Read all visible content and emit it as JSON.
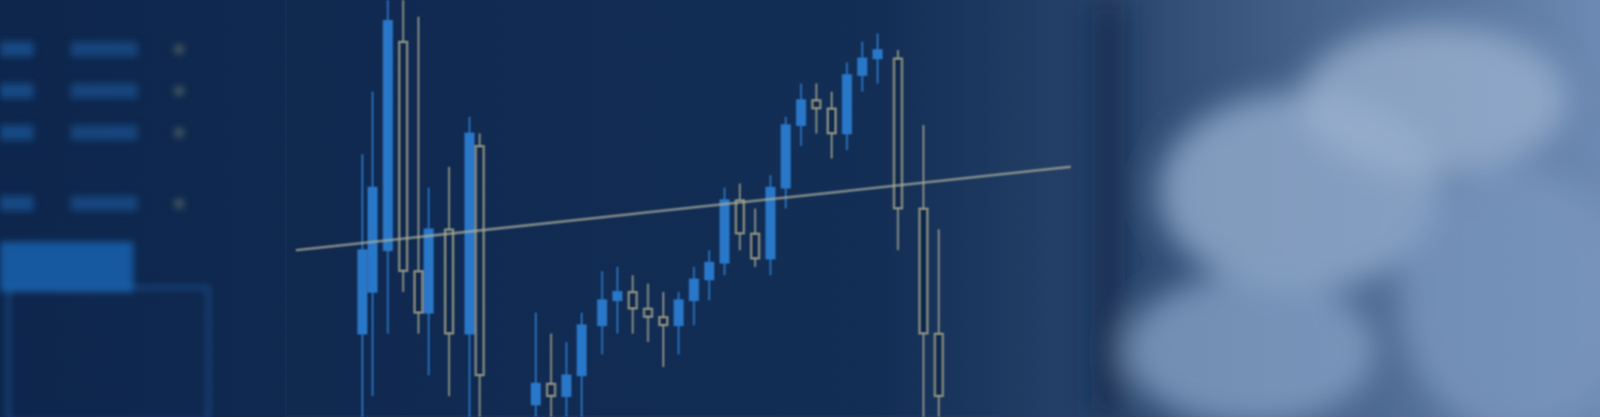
{
  "chart_data": {
    "type": "candlestick",
    "x": [
      0,
      2,
      5,
      8,
      11,
      13,
      17,
      21,
      23,
      34,
      37,
      40,
      43,
      47,
      50,
      53,
      56,
      59,
      62,
      65,
      68,
      71,
      74,
      77,
      80,
      83,
      86,
      89,
      92,
      95,
      98,
      101,
      105,
      110,
      113
    ],
    "open": [
      20,
      30,
      40,
      90,
      35,
      25,
      45,
      20,
      65,
      3,
      8,
      5,
      10,
      22,
      28,
      30,
      26,
      24,
      22,
      28,
      33,
      37,
      52,
      44,
      38,
      55,
      70,
      76,
      74,
      68,
      82,
      86,
      86,
      50,
      20
    ],
    "high": [
      63,
      78,
      100,
      100,
      96,
      55,
      60,
      72,
      68,
      25,
      20,
      18,
      25,
      35,
      36,
      34,
      32,
      30,
      30,
      36,
      40,
      55,
      56,
      50,
      58,
      72,
      80,
      80,
      78,
      85,
      90,
      92,
      88,
      70,
      45
    ],
    "low": [
      0,
      5,
      20,
      30,
      20,
      10,
      5,
      0,
      0,
      0,
      0,
      0,
      0,
      15,
      20,
      20,
      18,
      12,
      15,
      22,
      28,
      34,
      40,
      36,
      34,
      50,
      65,
      68,
      62,
      64,
      78,
      80,
      40,
      0,
      0
    ],
    "close": [
      40,
      55,
      95,
      35,
      25,
      45,
      20,
      68,
      10,
      8,
      5,
      10,
      22,
      28,
      30,
      26,
      24,
      22,
      28,
      33,
      37,
      52,
      44,
      38,
      55,
      70,
      76,
      74,
      68,
      82,
      86,
      88,
      50,
      20,
      5
    ],
    "colors": [
      "#2f86dc",
      "#2f86dc",
      "#2f86dc",
      "#b4b28f",
      "#b4b28f",
      "#2f86dc",
      "#b4b28f",
      "#2f86dc",
      "#b4b28f",
      "#2f86dc",
      "#b4b28f",
      "#2f86dc",
      "#2f86dc",
      "#2f86dc",
      "#2f86dc",
      "#b4b28f",
      "#b4b28f",
      "#b4b28f",
      "#2f86dc",
      "#2f86dc",
      "#2f86dc",
      "#2f86dc",
      "#b4b28f",
      "#b4b28f",
      "#2f86dc",
      "#2f86dc",
      "#2f86dc",
      "#b4b28f",
      "#b4b28f",
      "#2f86dc",
      "#2f86dc",
      "#2f86dc",
      "#b4b28f",
      "#b4b28f",
      "#b4b28f"
    ],
    "xlim": [
      -15,
      125
    ],
    "ylim": [
      0,
      100
    ],
    "tick_labels": false,
    "grid": false
  }
}
